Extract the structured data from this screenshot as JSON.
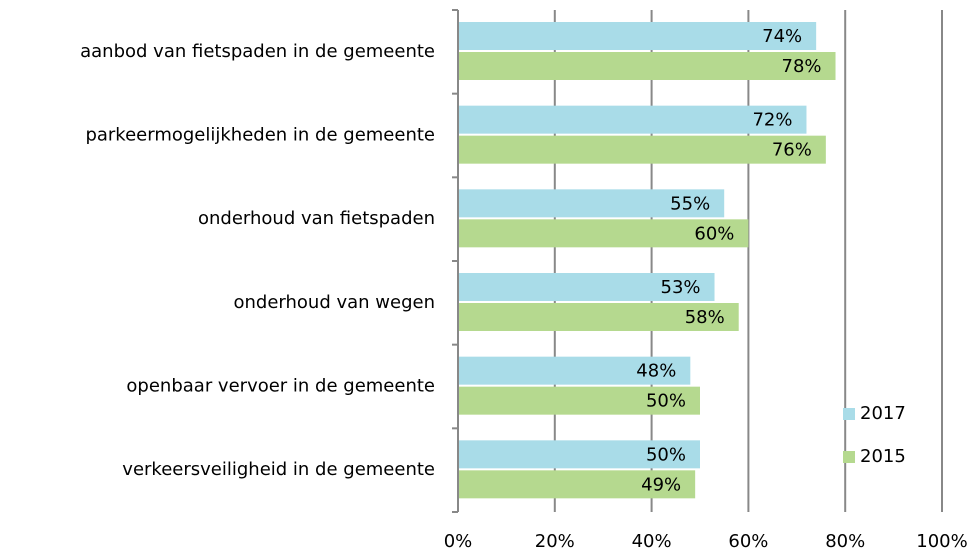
{
  "chart_data": {
    "type": "bar",
    "orientation": "horizontal",
    "categories": [
      "aanbod van fietspaden in de gemeente",
      "parkeermogelijkheden in de gemeente",
      "onderhoud van fietspaden",
      "onderhoud van wegen",
      "openbaar vervoer in de gemeente",
      "verkeersveiligheid in de gemeente"
    ],
    "series": [
      {
        "name": "2017",
        "color": "#a9dce8",
        "values": [
          74,
          72,
          55,
          53,
          48,
          50
        ],
        "value_labels": [
          "74%",
          "72%",
          "55%",
          "53%",
          "48%",
          "50%"
        ]
      },
      {
        "name": "2015",
        "color": "#b5d98f",
        "values": [
          78,
          76,
          60,
          58,
          50,
          49
        ],
        "value_labels": [
          "78%",
          "76%",
          "60%",
          "58%",
          "50%",
          "49%"
        ]
      }
    ],
    "xlim": [
      0,
      100
    ],
    "xticks": [
      {
        "value": 0,
        "label": "0%"
      },
      {
        "value": 20,
        "label": "20%"
      },
      {
        "value": 40,
        "label": "40%"
      },
      {
        "value": 60,
        "label": "60%"
      },
      {
        "value": 80,
        "label": "80%"
      },
      {
        "value": 100,
        "label": "100%"
      }
    ],
    "grid": true,
    "legend": "lower right"
  }
}
